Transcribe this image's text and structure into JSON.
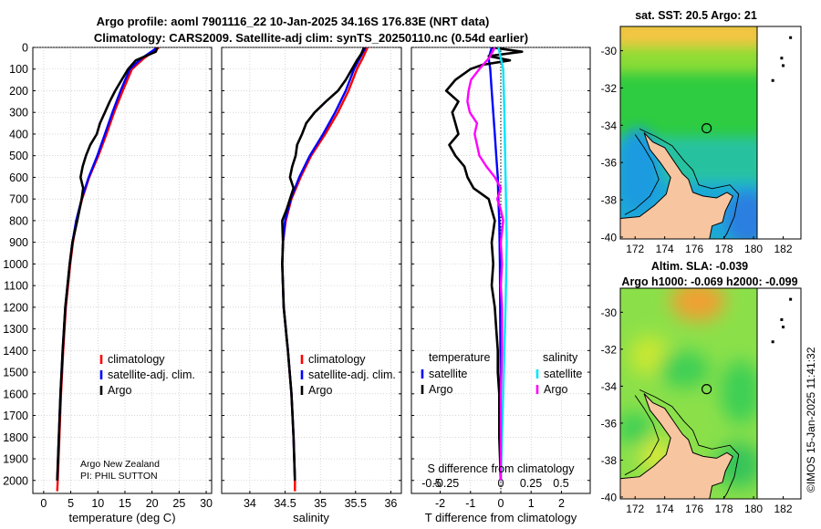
{
  "title": {
    "line1": "Argo profile: aoml 7901116_22 10-Jan-2025 34.16S 176.83E (NRT data)",
    "line2": "Climatology: CARS2009. Satellite-adj clim: synTS_20250110.nc (0.54d earlier)"
  },
  "colors": {
    "climatology": "#ff0000",
    "satellite_temp": "#0000ff",
    "argo_temp": "#000000",
    "satellite_sal_diff": "#00e5ff",
    "argo_sal_diff": "#ff00ff",
    "land": "#f7c59f"
  },
  "chart_data": [
    {
      "type": "line",
      "id": "temperature",
      "xlabel": "temperature (deg C)",
      "xlim": [
        -2,
        31
      ],
      "ylim": [
        2060,
        0
      ],
      "xticks": [
        0,
        5,
        10,
        15,
        20,
        25,
        30
      ],
      "yticks": [
        0,
        100,
        200,
        300,
        400,
        500,
        600,
        700,
        800,
        900,
        1000,
        1100,
        1200,
        1300,
        1400,
        1500,
        1600,
        1700,
        1800,
        1900,
        2000
      ],
      "legend": [
        "climatology",
        "satellite-adj. clim.",
        "Argo"
      ],
      "annotation": [
        "Argo New Zealand",
        "PI: PHIL SUTTON"
      ],
      "series": [
        {
          "name": "climatology",
          "color": "#ff0000",
          "depth": [
            0,
            50,
            100,
            200,
            300,
            400,
            500,
            600,
            700,
            800,
            900,
            1000,
            1200,
            1400,
            1600,
            1800,
            2000,
            2050
          ],
          "values": [
            21.3,
            18.5,
            16.3,
            14.6,
            13.0,
            11.6,
            10.1,
            8.4,
            7.1,
            6.1,
            5.4,
            4.9,
            4.1,
            3.6,
            3.2,
            2.9,
            2.6,
            2.5
          ]
        },
        {
          "name": "satellite-adj. clim.",
          "color": "#0000ff",
          "depth": [
            0,
            50,
            100,
            200,
            300,
            400,
            500,
            600,
            700,
            800,
            900,
            1000,
            1200,
            1400,
            1600,
            1800,
            2000
          ],
          "values": [
            21.0,
            18.1,
            15.9,
            14.2,
            12.7,
            11.3,
            9.9,
            8.3,
            7.0,
            6.0,
            5.3,
            4.8,
            4.0,
            3.5,
            3.1,
            2.8,
            2.5
          ]
        },
        {
          "name": "Argo",
          "color": "#000000",
          "depth": [
            0,
            20,
            60,
            100,
            150,
            200,
            250,
            300,
            350,
            400,
            450,
            500,
            550,
            600,
            650,
            700,
            800,
            900,
            1000,
            1200,
            1400,
            1600,
            1800,
            2000
          ],
          "values": [
            21.0,
            20.7,
            17.0,
            15.6,
            14.4,
            13.2,
            12.2,
            11.3,
            10.4,
            9.8,
            8.6,
            7.8,
            7.2,
            6.8,
            7.3,
            7.0,
            6.2,
            5.3,
            4.8,
            4.0,
            3.5,
            3.1,
            2.8,
            2.5
          ]
        }
      ]
    },
    {
      "type": "line",
      "id": "salinity",
      "xlabel": "salinity",
      "xlim": [
        33.6,
        36.15
      ],
      "ylim": [
        2060,
        0
      ],
      "xticks": [
        34,
        34.5,
        35,
        35.5,
        36
      ],
      "legend": [
        "climatology",
        "satellite-adj. clim.",
        "Argo"
      ],
      "series": [
        {
          "name": "climatology",
          "color": "#ff0000",
          "depth": [
            0,
            50,
            100,
            200,
            300,
            400,
            500,
            600,
            700,
            800,
            900,
            1000,
            1200,
            1400,
            1600,
            1800,
            2000,
            2050
          ],
          "values": [
            35.67,
            35.6,
            35.52,
            35.4,
            35.25,
            35.07,
            34.87,
            34.72,
            34.59,
            34.51,
            34.47,
            34.46,
            34.48,
            34.54,
            34.59,
            34.62,
            34.64,
            34.64
          ]
        },
        {
          "name": "satellite-adj. clim.",
          "color": "#0000ff",
          "depth": [
            0,
            50,
            100,
            200,
            300,
            400,
            500,
            600,
            700,
            800,
            900,
            1000,
            1200,
            1400,
            1600,
            1800,
            2000
          ],
          "values": [
            35.64,
            35.56,
            35.48,
            35.36,
            35.21,
            35.04,
            34.85,
            34.7,
            34.58,
            34.5,
            34.47,
            34.46,
            34.48,
            34.54,
            34.59,
            34.62,
            34.64
          ]
        },
        {
          "name": "Argo",
          "color": "#000000",
          "depth": [
            0,
            30,
            60,
            100,
            150,
            200,
            250,
            300,
            350,
            400,
            450,
            500,
            550,
            600,
            650,
            700,
            750,
            800,
            900,
            1000,
            1200,
            1400,
            1600,
            1800,
            2000
          ],
          "values": [
            35.62,
            35.58,
            35.52,
            35.45,
            35.36,
            35.25,
            35.08,
            34.92,
            34.8,
            34.74,
            34.67,
            34.65,
            34.6,
            34.57,
            34.62,
            34.57,
            34.52,
            34.46,
            34.47,
            34.46,
            34.48,
            34.54,
            34.59,
            34.62,
            34.64
          ]
        }
      ]
    },
    {
      "type": "line",
      "id": "difference",
      "xlabel": "T difference from climatology",
      "xlabel_top": "S difference from climatology",
      "xlim": [
        -2.95,
        2.95
      ],
      "ylim": [
        2060,
        0
      ],
      "xticks": [
        -2,
        -1,
        0,
        1,
        2
      ],
      "s_ticks": [
        -0.5,
        -0.25,
        0,
        0.25,
        0.5
      ],
      "legend_titles": [
        "temperature",
        "salinity"
      ],
      "legend": [
        "satellite",
        "Argo",
        "satellite",
        "Argo"
      ],
      "series": [
        {
          "name": "T satellite",
          "color": "#0000ff",
          "depth": [
            0,
            50,
            100,
            200,
            300,
            400,
            500,
            600,
            700,
            800,
            1000,
            1200,
            1500,
            2000
          ],
          "values": [
            -0.3,
            -0.4,
            -0.35,
            -0.3,
            -0.25,
            -0.2,
            -0.15,
            -0.1,
            -0.08,
            -0.05,
            -0.03,
            -0.02,
            -0.01,
            0
          ]
        },
        {
          "name": "T Argo",
          "color": "#000000",
          "depth": [
            0,
            20,
            40,
            60,
            80,
            100,
            150,
            200,
            250,
            300,
            350,
            400,
            450,
            500,
            550,
            600,
            650,
            700,
            750,
            800,
            900,
            1000,
            1100,
            1200,
            1300,
            1400,
            1500,
            1600,
            1800,
            2000
          ],
          "values": [
            -0.3,
            0.7,
            -0.4,
            0.3,
            -0.6,
            -1.0,
            -1.5,
            -1.8,
            -1.4,
            -1.6,
            -1.5,
            -1.4,
            -1.7,
            -1.5,
            -1.2,
            -1.1,
            -0.9,
            -0.4,
            -0.3,
            -0.2,
            -0.3,
            -0.25,
            -0.3,
            -0.2,
            -0.15,
            -0.1,
            -0.1,
            -0.05,
            -0.05,
            0
          ]
        },
        {
          "name": "S satellite",
          "color": "#00e5ff",
          "depth": [
            0,
            100,
            300,
            600,
            900,
            1200,
            1600,
            2000
          ],
          "values": [
            -0.02,
            0.02,
            0.03,
            0.04,
            0.05,
            0.04,
            0.02,
            0
          ]
        },
        {
          "name": "S Argo",
          "color": "#ff00ff",
          "depth": [
            0,
            50,
            100,
            150,
            200,
            250,
            300,
            350,
            400,
            450,
            500,
            550,
            600,
            650,
            700,
            750,
            800,
            900,
            1000,
            1100,
            1200,
            1400,
            1600,
            1800,
            2000
          ],
          "values": [
            -0.05,
            -0.1,
            -0.18,
            -0.25,
            -0.27,
            -0.28,
            -0.26,
            -0.2,
            -0.22,
            -0.2,
            -0.18,
            -0.12,
            -0.05,
            0.0,
            -0.03,
            0.0,
            0.02,
            0.0,
            0.01,
            0.0,
            0.01,
            0.01,
            0.0,
            0.0,
            0
          ]
        }
      ]
    },
    {
      "type": "heatmap",
      "id": "sst_map",
      "title": "sat. SST: 20.5 Argo: 21",
      "xlim": [
        171,
        183.2
      ],
      "ylim": [
        -40.1,
        -28.7
      ],
      "xticks": [
        172,
        174,
        176,
        178,
        180,
        182
      ],
      "yticks": [
        -30,
        -32,
        -34,
        -36,
        -38,
        -40
      ],
      "marker": {
        "lon": 176.83,
        "lat": -34.16
      }
    },
    {
      "type": "heatmap",
      "id": "sla_map",
      "title": "Altim. SLA: -0.039",
      "subtitle": "Argo h1000: -0.069 h2000: -0.099",
      "xlim": [
        171,
        183.2
      ],
      "ylim": [
        -40.1,
        -28.7
      ],
      "xticks": [
        172,
        174,
        176,
        178,
        180,
        182
      ],
      "yticks": [
        -30,
        -32,
        -34,
        -36,
        -38,
        -40
      ],
      "marker": {
        "lon": 176.83,
        "lat": -34.16
      }
    }
  ],
  "footer": {
    "stamp": "©IMOS 15-Jan-2025 11:41:32"
  }
}
